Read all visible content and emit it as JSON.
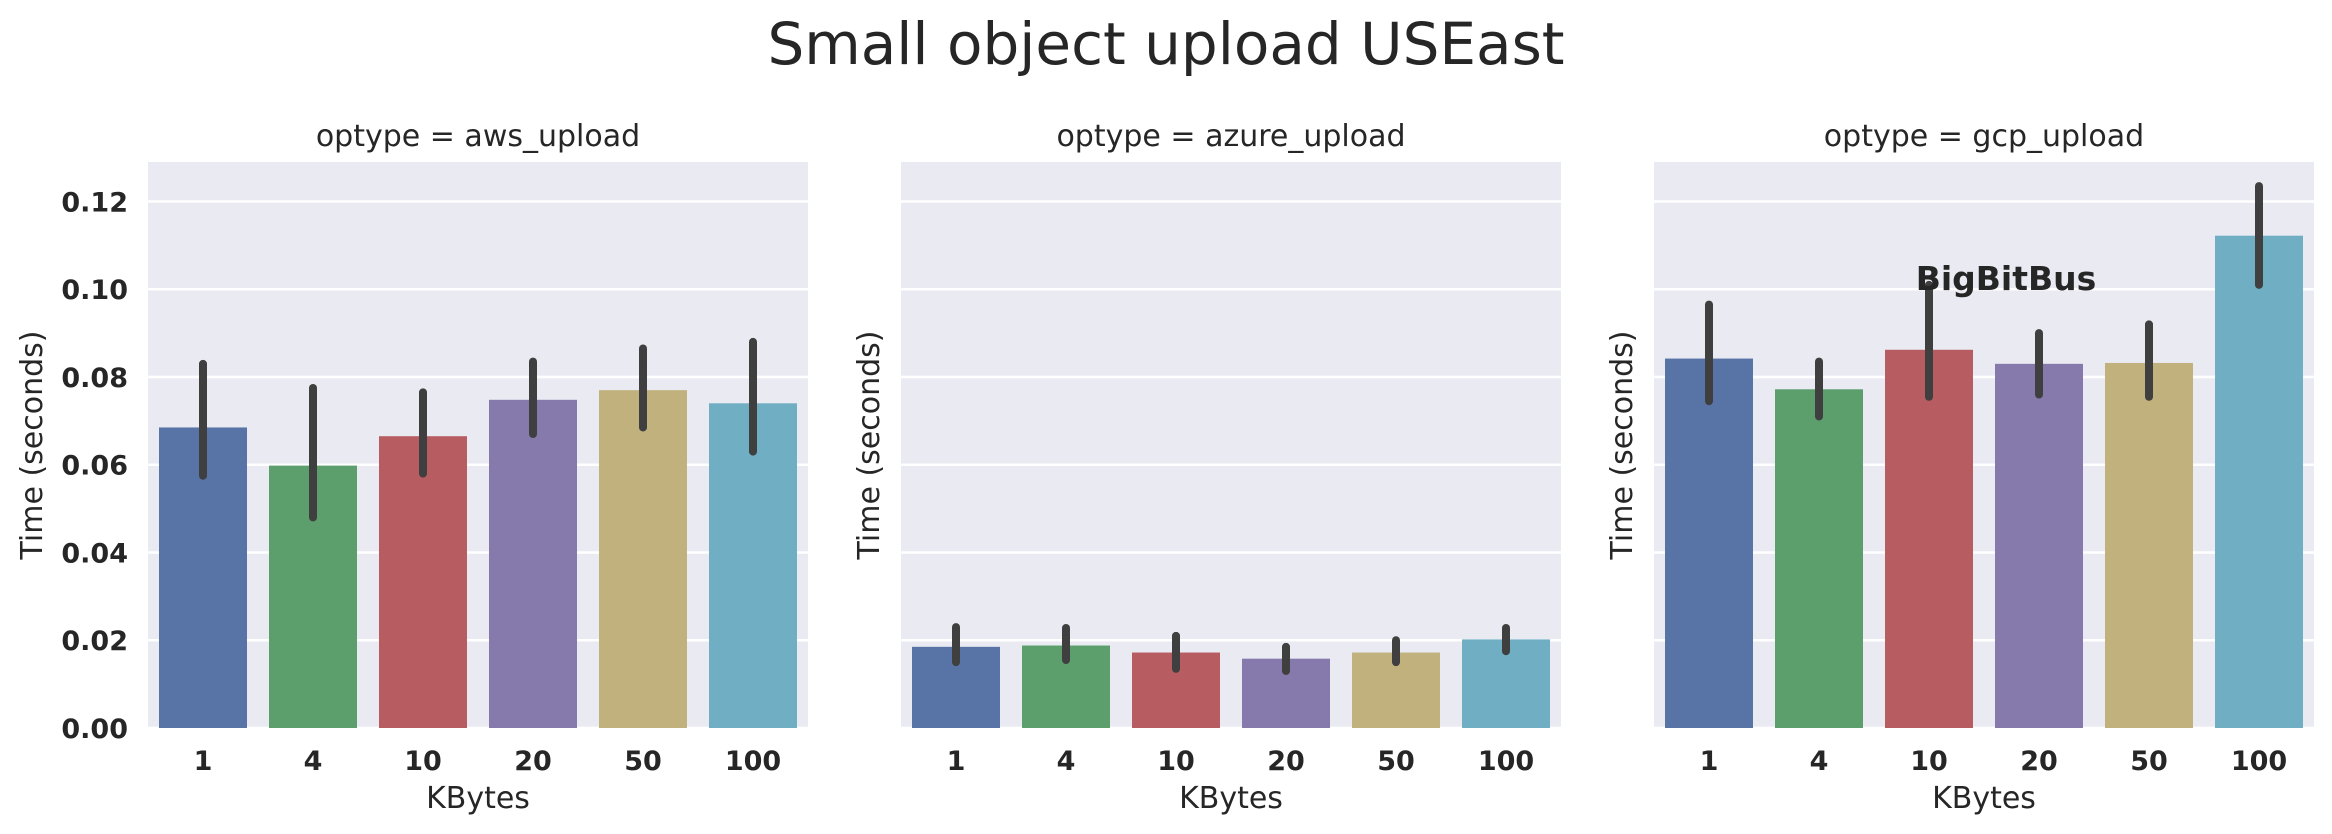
{
  "chart_data": {
    "type": "bar",
    "title": "Small object upload USEast",
    "categories": [
      "1",
      "4",
      "10",
      "20",
      "50",
      "100"
    ],
    "xlabel": "KBytes",
    "ylabel": "Time (seconds)",
    "ylim": [
      0,
      0.129
    ],
    "yticks": [
      "0.00",
      "0.02",
      "0.04",
      "0.06",
      "0.08",
      "0.10",
      "0.12"
    ],
    "grid": true,
    "sharey": true,
    "watermark": "BigBitBus",
    "colors": [
      "#5874a6",
      "#5d9f6c",
      "#b75c60",
      "#8679ac",
      "#c1b27d",
      "#70aec3"
    ],
    "errorbar_color": "#3f3f3f",
    "facet_background": "#eaeaf2",
    "panels": [
      {
        "title": "optype = aws_upload",
        "values": [
          0.0685,
          0.0598,
          0.0665,
          0.0748,
          0.077,
          0.074
        ],
        "err_low": [
          0.0575,
          0.048,
          0.058,
          0.067,
          0.0685,
          0.063
        ],
        "err_high": [
          0.083,
          0.0775,
          0.0765,
          0.0835,
          0.0865,
          0.088
        ]
      },
      {
        "title": "optype = azure_upload",
        "values": [
          0.0185,
          0.0188,
          0.0172,
          0.0158,
          0.0172,
          0.0202
        ],
        "err_low": [
          0.015,
          0.0155,
          0.0135,
          0.013,
          0.015,
          0.0175
        ],
        "err_high": [
          0.023,
          0.0228,
          0.021,
          0.0185,
          0.02,
          0.0228
        ]
      },
      {
        "title": "optype = gcp_upload",
        "values": [
          0.0842,
          0.0772,
          0.0862,
          0.083,
          0.0832,
          0.1122
        ],
        "err_low": [
          0.0745,
          0.071,
          0.0755,
          0.076,
          0.0755,
          0.101
        ],
        "err_high": [
          0.0965,
          0.0835,
          0.101,
          0.09,
          0.092,
          0.1235
        ]
      }
    ]
  }
}
